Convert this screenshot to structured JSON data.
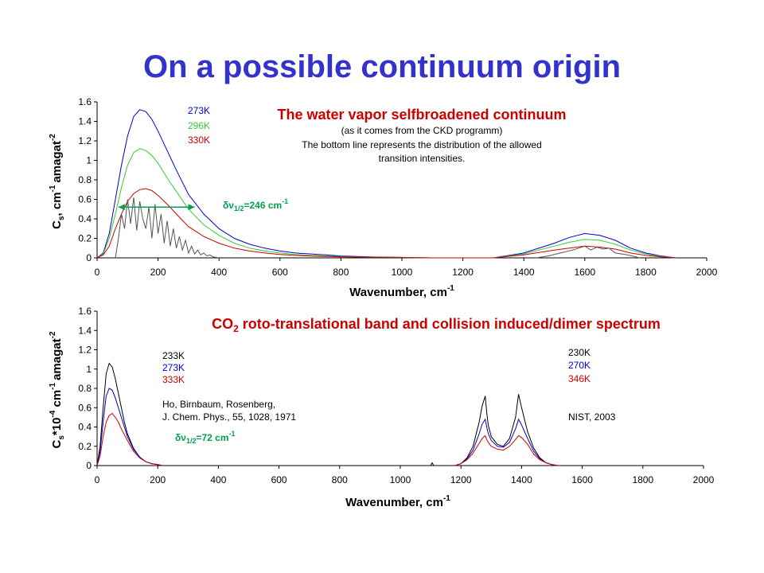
{
  "slide_title": "On a possible continuum origin",
  "colors": {
    "title": "#3333cc",
    "chart_title": "#cc0000",
    "blue": "#0000cc",
    "green": "#33cc33",
    "red": "#cc0000",
    "black": "#000000",
    "gray": "#555555",
    "annot_green": "#00a050"
  },
  "chart_data": [
    {
      "type": "line",
      "title": "The water vapor selfbroadened continuum",
      "subtitle_lines": [
        "(as it comes from the CKD programm)",
        "The bottom line represents the distribution of the allowed",
        "transition intensities."
      ],
      "xlabel": "Wavenumber, cm",
      "xlabel_sup": "-1",
      "ylabel": "C",
      "ylabel_sub": "s",
      "ylabel_mid": ", cm",
      "ylabel_sup1": "-1",
      "ylabel_tail": "amagat",
      "ylabel_sup2": "-2",
      "xlim": [
        0,
        2000
      ],
      "ylim": [
        0,
        1.6
      ],
      "xticks": [
        "0",
        "200",
        "400",
        "600",
        "800",
        "1000",
        "1200",
        "1400",
        "1600",
        "1800",
        "2000"
      ],
      "yticks": [
        "0",
        "0.2",
        "0.4",
        "0.6",
        "0.8",
        "1",
        "1.2",
        "1.4",
        "1.6"
      ],
      "legend": [
        "273K",
        "296K",
        "330K"
      ],
      "annotation": {
        "text": "δν",
        "sub": "1/2",
        "eq": "=246 cm",
        "sup": "-1"
      },
      "arrow_x": [
        70,
        320
      ],
      "arrow_y": 0.52,
      "series": [
        {
          "name": "273K",
          "color": "#0000cc",
          "x": [
            0,
            20,
            40,
            60,
            80,
            100,
            120,
            140,
            160,
            180,
            200,
            230,
            260,
            300,
            350,
            400,
            450,
            500,
            550,
            600,
            650,
            700,
            750,
            800,
            850,
            900,
            1000,
            1100,
            1300,
            1400,
            1500,
            1550,
            1600,
            1650,
            1700,
            1750,
            1800,
            1850,
            1900
          ],
          "y": [
            0,
            0.05,
            0.25,
            0.6,
            0.95,
            1.25,
            1.45,
            1.52,
            1.5,
            1.42,
            1.3,
            1.1,
            0.9,
            0.65,
            0.45,
            0.3,
            0.2,
            0.14,
            0.1,
            0.07,
            0.05,
            0.04,
            0.03,
            0.02,
            0.015,
            0.01,
            0.005,
            0,
            0,
            0.05,
            0.15,
            0.21,
            0.25,
            0.23,
            0.18,
            0.1,
            0.05,
            0.02,
            0
          ]
        },
        {
          "name": "296K",
          "color": "#33cc33",
          "x": [
            0,
            20,
            40,
            60,
            80,
            100,
            120,
            140,
            160,
            180,
            200,
            230,
            260,
            300,
            350,
            400,
            450,
            500,
            550,
            600,
            650,
            700,
            750,
            800,
            850,
            900,
            1000,
            1100,
            1300,
            1400,
            1500,
            1550,
            1600,
            1650,
            1700,
            1750,
            1800,
            1850,
            1900
          ],
          "y": [
            0,
            0.04,
            0.2,
            0.45,
            0.72,
            0.95,
            1.08,
            1.12,
            1.1,
            1.05,
            0.97,
            0.82,
            0.68,
            0.5,
            0.34,
            0.23,
            0.15,
            0.1,
            0.07,
            0.05,
            0.035,
            0.025,
            0.02,
            0.015,
            0.01,
            0.008,
            0.004,
            0,
            0,
            0.04,
            0.12,
            0.16,
            0.19,
            0.18,
            0.14,
            0.08,
            0.04,
            0.015,
            0
          ]
        },
        {
          "name": "330K",
          "color": "#cc0000",
          "x": [
            0,
            20,
            40,
            60,
            80,
            100,
            120,
            140,
            160,
            180,
            200,
            230,
            260,
            300,
            350,
            400,
            450,
            500,
            550,
            600,
            650,
            700,
            750,
            800,
            850,
            900,
            1000,
            1100,
            1300,
            1400,
            1500,
            1550,
            1600,
            1650,
            1700,
            1750,
            1800,
            1850,
            1900
          ],
          "y": [
            0,
            0.03,
            0.12,
            0.3,
            0.45,
            0.58,
            0.66,
            0.7,
            0.71,
            0.69,
            0.64,
            0.55,
            0.45,
            0.32,
            0.22,
            0.15,
            0.1,
            0.07,
            0.05,
            0.035,
            0.025,
            0.018,
            0.014,
            0.01,
            0.008,
            0.005,
            0.003,
            0,
            0,
            0.03,
            0.08,
            0.1,
            0.12,
            0.11,
            0.09,
            0.05,
            0.025,
            0.01,
            0
          ]
        },
        {
          "name": "",
          "color": "#555555",
          "x": [
            60,
            70,
            80,
            90,
            100,
            110,
            120,
            130,
            140,
            150,
            160,
            170,
            180,
            190,
            200,
            210,
            220,
            230,
            240,
            250,
            260,
            270,
            280,
            290,
            300,
            310,
            320,
            330,
            340,
            350,
            360,
            370,
            380,
            400
          ],
          "y": [
            0,
            0.2,
            0.45,
            0.3,
            0.6,
            0.35,
            0.62,
            0.28,
            0.58,
            0.4,
            0.3,
            0.52,
            0.2,
            0.55,
            0.25,
            0.45,
            0.15,
            0.38,
            0.12,
            0.3,
            0.1,
            0.22,
            0.08,
            0.18,
            0.05,
            0.12,
            0.04,
            0.08,
            0.03,
            0.05,
            0.02,
            0.03,
            0.01,
            0
          ]
        },
        {
          "name": "",
          "color": "#555555",
          "x": [
            1440,
            1480,
            1520,
            1560,
            1580,
            1600,
            1620,
            1640,
            1660,
            1680,
            1700,
            1740,
            1780
          ],
          "y": [
            0,
            0.02,
            0.05,
            0.08,
            0.1,
            0.12,
            0.08,
            0.11,
            0.09,
            0.1,
            0.05,
            0.03,
            0
          ]
        }
      ]
    },
    {
      "type": "line",
      "title": "CO",
      "title_sub": "2",
      "title_rest": " roto-translational band and collision induced/dimer spectrum",
      "xlabel": "Wavenumber, cm",
      "xlabel_sup": "-1",
      "ylabel": "C",
      "ylabel_sub": "s",
      "ylabel_mid": "*10",
      "ylabel_sup0": "-4",
      "ylabel_mid2": " cm",
      "ylabel_sup1": "-1",
      "ylabel_tail": "amagat",
      "ylabel_sup2": "-2",
      "xlim": [
        0,
        2000
      ],
      "ylim": [
        0,
        1.6
      ],
      "xticks": [
        "0",
        "200",
        "400",
        "600",
        "800",
        "1000",
        "1200",
        "1400",
        "1600",
        "1800",
        "2000"
      ],
      "yticks": [
        "0",
        "0.2",
        "0.4",
        "0.6",
        "0.8",
        "1",
        "1.2",
        "1.4",
        "1.6"
      ],
      "legend_left": [
        "233K",
        "273K",
        "333K"
      ],
      "legend_right": [
        "230K",
        "270K",
        "346K"
      ],
      "ref_left": [
        "Ho, Birnbaum, Rosenberg,",
        "J. Chem. Phys., 55, 1028, 1971"
      ],
      "ref_right": "NIST, 2003",
      "annotation": {
        "text": "δν",
        "sub": "1/2",
        "eq": "=72 cm",
        "sup": "-1"
      },
      "series": [
        {
          "name": "233K",
          "color": "#000000",
          "x": [
            0,
            10,
            20,
            30,
            40,
            50,
            60,
            70,
            80,
            90,
            100,
            120,
            140,
            160,
            180,
            200,
            215
          ],
          "y": [
            0,
            0.2,
            0.6,
            0.95,
            1.06,
            1.02,
            0.9,
            0.75,
            0.6,
            0.45,
            0.33,
            0.18,
            0.09,
            0.04,
            0.02,
            0.01,
            0
          ]
        },
        {
          "name": "273K",
          "color": "#0000cc",
          "x": [
            0,
            10,
            20,
            30,
            40,
            50,
            60,
            70,
            80,
            90,
            100,
            120,
            140,
            160,
            180,
            200,
            215
          ],
          "y": [
            0,
            0.15,
            0.45,
            0.72,
            0.8,
            0.78,
            0.7,
            0.6,
            0.5,
            0.4,
            0.3,
            0.17,
            0.09,
            0.04,
            0.02,
            0.01,
            0
          ]
        },
        {
          "name": "333K",
          "color": "#cc0000",
          "x": [
            0,
            10,
            20,
            30,
            40,
            50,
            60,
            70,
            80,
            90,
            100,
            120,
            140,
            160,
            180,
            200,
            215
          ],
          "y": [
            0,
            0.1,
            0.3,
            0.45,
            0.52,
            0.54,
            0.5,
            0.45,
            0.38,
            0.32,
            0.26,
            0.15,
            0.08,
            0.04,
            0.02,
            0.01,
            0
          ]
        },
        {
          "name": "230K",
          "color": "#000000",
          "x": [
            1100,
            1105,
            1110,
            1180,
            1200,
            1220,
            1240,
            1260,
            1270,
            1280,
            1285,
            1290,
            1300,
            1320,
            1340,
            1360,
            1380,
            1390,
            1400,
            1420,
            1440,
            1460,
            1480,
            1500,
            1520
          ],
          "y": [
            0,
            0.03,
            0,
            0,
            0.02,
            0.08,
            0.2,
            0.45,
            0.62,
            0.72,
            0.55,
            0.42,
            0.3,
            0.22,
            0.2,
            0.28,
            0.5,
            0.74,
            0.6,
            0.35,
            0.18,
            0.08,
            0.03,
            0.01,
            0
          ]
        },
        {
          "name": "270K",
          "color": "#0000cc",
          "x": [
            1180,
            1200,
            1220,
            1240,
            1260,
            1270,
            1280,
            1285,
            1290,
            1300,
            1320,
            1340,
            1360,
            1380,
            1390,
            1400,
            1420,
            1440,
            1460,
            1480,
            1500,
            1520
          ],
          "y": [
            0,
            0.02,
            0.07,
            0.16,
            0.33,
            0.43,
            0.48,
            0.4,
            0.33,
            0.26,
            0.2,
            0.19,
            0.24,
            0.38,
            0.48,
            0.42,
            0.28,
            0.15,
            0.07,
            0.03,
            0.01,
            0
          ]
        },
        {
          "name": "346K",
          "color": "#cc0000",
          "x": [
            1180,
            1200,
            1220,
            1240,
            1260,
            1270,
            1280,
            1285,
            1290,
            1300,
            1320,
            1340,
            1360,
            1380,
            1390,
            1400,
            1420,
            1440,
            1460,
            1480,
            1500,
            1520
          ],
          "y": [
            0,
            0.02,
            0.06,
            0.13,
            0.23,
            0.28,
            0.31,
            0.27,
            0.24,
            0.2,
            0.17,
            0.16,
            0.2,
            0.27,
            0.31,
            0.29,
            0.22,
            0.12,
            0.06,
            0.03,
            0.01,
            0
          ]
        }
      ]
    }
  ]
}
